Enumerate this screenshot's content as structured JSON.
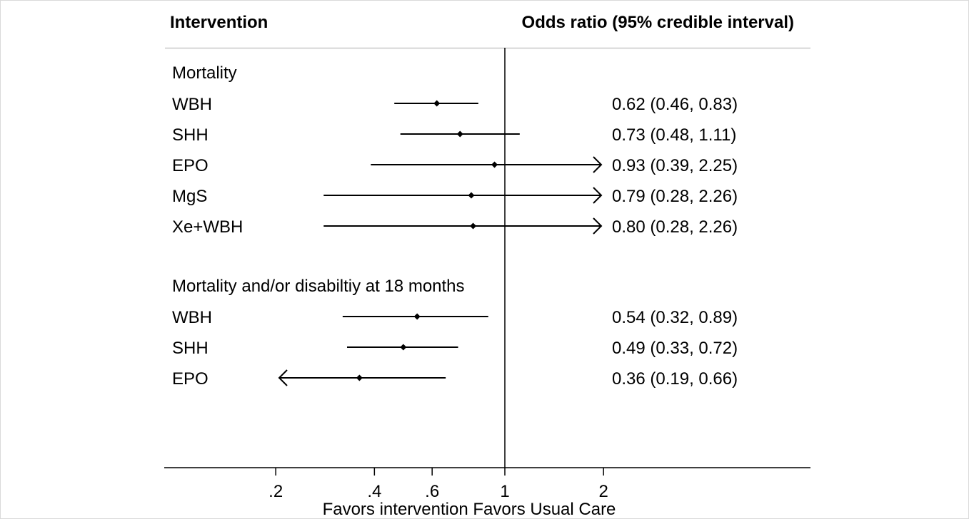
{
  "chart_data": {
    "type": "forest",
    "header": {
      "left": "Intervention",
      "right": "Odds ratio (95% credible interval)"
    },
    "xscale": "log",
    "xlim": [
      0.2,
      4.0
    ],
    "reference_line": 1,
    "xticks": [
      {
        "value": 0.2,
        "label": ".2"
      },
      {
        "value": 0.4,
        "label": ".4"
      },
      {
        "value": 0.6,
        "label": ".6"
      },
      {
        "value": 1,
        "label": "1"
      },
      {
        "value": 2,
        "label": "2"
      }
    ],
    "xlabel": "Favors intervention Favors Usual Care",
    "groups": [
      {
        "title": "Mortality",
        "rows": [
          {
            "label": "WBH",
            "or": 0.62,
            "lower": 0.46,
            "upper": 0.83,
            "text": "0.62 (0.46, 0.83)"
          },
          {
            "label": "SHH",
            "or": 0.73,
            "lower": 0.48,
            "upper": 1.11,
            "text": "0.73 (0.48, 1.11)"
          },
          {
            "label": "EPO",
            "or": 0.93,
            "lower": 0.39,
            "upper": 2.25,
            "text": "0.93 (0.39, 2.25)"
          },
          {
            "label": "MgS",
            "or": 0.79,
            "lower": 0.28,
            "upper": 2.26,
            "text": "0.79 (0.28, 2.26)"
          },
          {
            "label": "Xe+WBH",
            "or": 0.8,
            "lower": 0.28,
            "upper": 2.26,
            "text": "0.80 (0.28, 2.26)"
          }
        ]
      },
      {
        "title": "Mortality and/or disabiltiy at 18 months",
        "rows": [
          {
            "label": "WBH",
            "or": 0.54,
            "lower": 0.32,
            "upper": 0.89,
            "text": "0.54 (0.32, 0.89)"
          },
          {
            "label": "SHH",
            "or": 0.49,
            "lower": 0.33,
            "upper": 0.72,
            "text": "0.49 (0.33, 0.72)"
          },
          {
            "label": "EPO",
            "or": 0.36,
            "lower": 0.19,
            "upper": 0.66,
            "text": "0.36 (0.19, 0.66)"
          }
        ]
      }
    ]
  }
}
